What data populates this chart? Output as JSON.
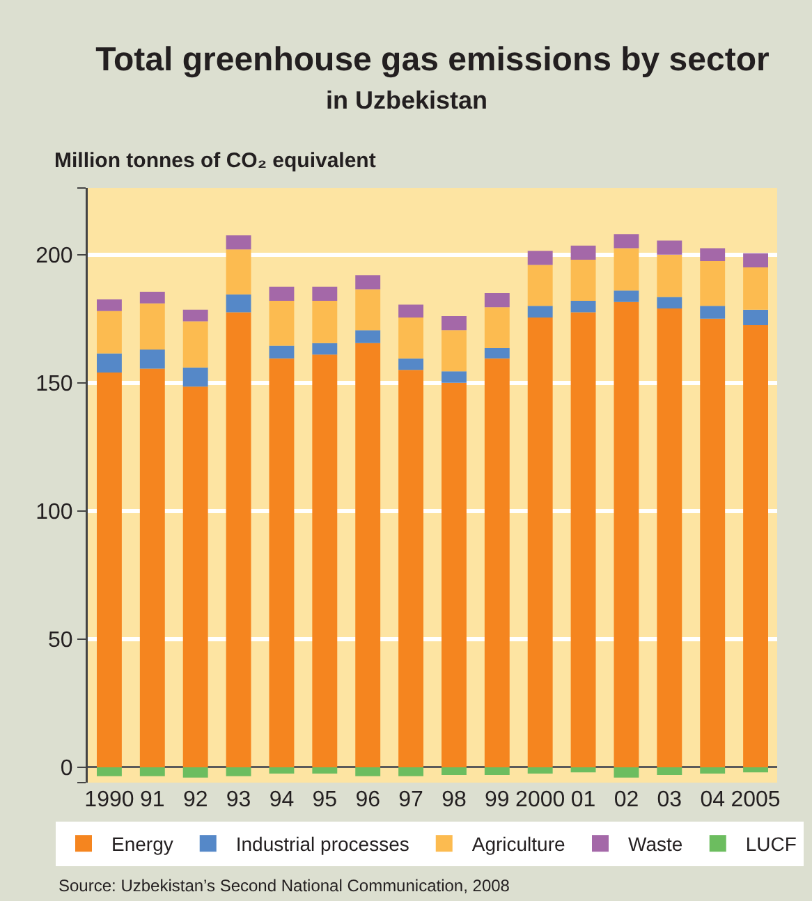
{
  "chart_data": {
    "type": "bar",
    "title": "Total greenhouse gas emissions by sector",
    "subtitle": "in Uzbekistan",
    "ylabel": "Million tonnes of CO₂ equivalent",
    "annotations": [
      "Source: Uzbekistan’s Second National Communication, 2008"
    ],
    "categories": [
      "1990",
      "91",
      "92",
      "93",
      "94",
      "95",
      "96",
      "97",
      "98",
      "99",
      "2000",
      "01",
      "02",
      "03",
      "04",
      "2005"
    ],
    "stacked": true,
    "series": [
      {
        "name": "Energy",
        "color": "#f5851f",
        "values": [
          154,
          155.5,
          148.5,
          177.5,
          159.5,
          161,
          165.5,
          155,
          150,
          159.5,
          175.5,
          177.5,
          181.5,
          179,
          175,
          172.5
        ]
      },
      {
        "name": "Industrial processes",
        "color": "#5588c8",
        "values": [
          7.5,
          7.5,
          7.5,
          7,
          5,
          4.5,
          5,
          4.5,
          4.5,
          4,
          4.5,
          4.5,
          4.5,
          4.5,
          5,
          6
        ]
      },
      {
        "name": "Agriculture",
        "color": "#fcbb50",
        "values": [
          16.5,
          18,
          18,
          17.5,
          17.5,
          16.5,
          16,
          16,
          16,
          16,
          16,
          16,
          16.5,
          16.5,
          17.5,
          16.5
        ]
      },
      {
        "name": "Waste",
        "color": "#a468a8",
        "values": [
          4.5,
          4.5,
          4.5,
          5.5,
          5.5,
          5.5,
          5.5,
          5,
          5.5,
          5.5,
          5.5,
          5.5,
          5.5,
          5.5,
          5,
          5.5
        ]
      },
      {
        "name": "LUCF",
        "color": "#6cbd5f",
        "values": [
          -3.5,
          -3.5,
          -4,
          -3.5,
          -2.5,
          -2.5,
          -3.5,
          -3.5,
          -3,
          -3,
          -2.5,
          -2,
          -4,
          -3,
          -2.5,
          -2
        ]
      }
    ],
    "ylim": [
      -6,
      226
    ],
    "yticks": [
      {
        "value": -6,
        "label": null
      },
      0,
      50,
      100,
      150,
      200,
      {
        "value": 226,
        "label": null
      }
    ],
    "grid": "y",
    "legend": "bottom"
  }
}
